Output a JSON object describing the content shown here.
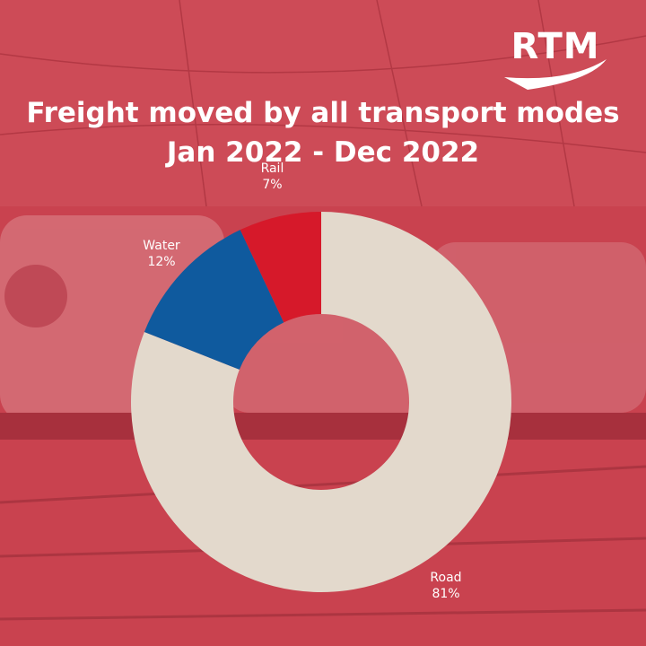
{
  "brand": {
    "logo_text": "RTM"
  },
  "colors": {
    "background_overlay": "#c9424f",
    "road": "#e3d9cc",
    "water": "#0f5a9e",
    "rail": "#d6192a",
    "text": "#ffffff"
  },
  "chart_data": {
    "type": "pie",
    "donut": true,
    "title": "Freight moved by all transport modes",
    "subtitle": "Jan 2022 - Dec 2022",
    "slices": [
      {
        "label": "Road",
        "value": 81,
        "value_label": "81%",
        "color": "#e3d9cc"
      },
      {
        "label": "Water",
        "value": 12,
        "value_label": "12%",
        "color": "#0f5a9e"
      },
      {
        "label": "Rail",
        "value": 7,
        "value_label": "7%",
        "color": "#d6192a"
      }
    ],
    "legend": "none"
  }
}
